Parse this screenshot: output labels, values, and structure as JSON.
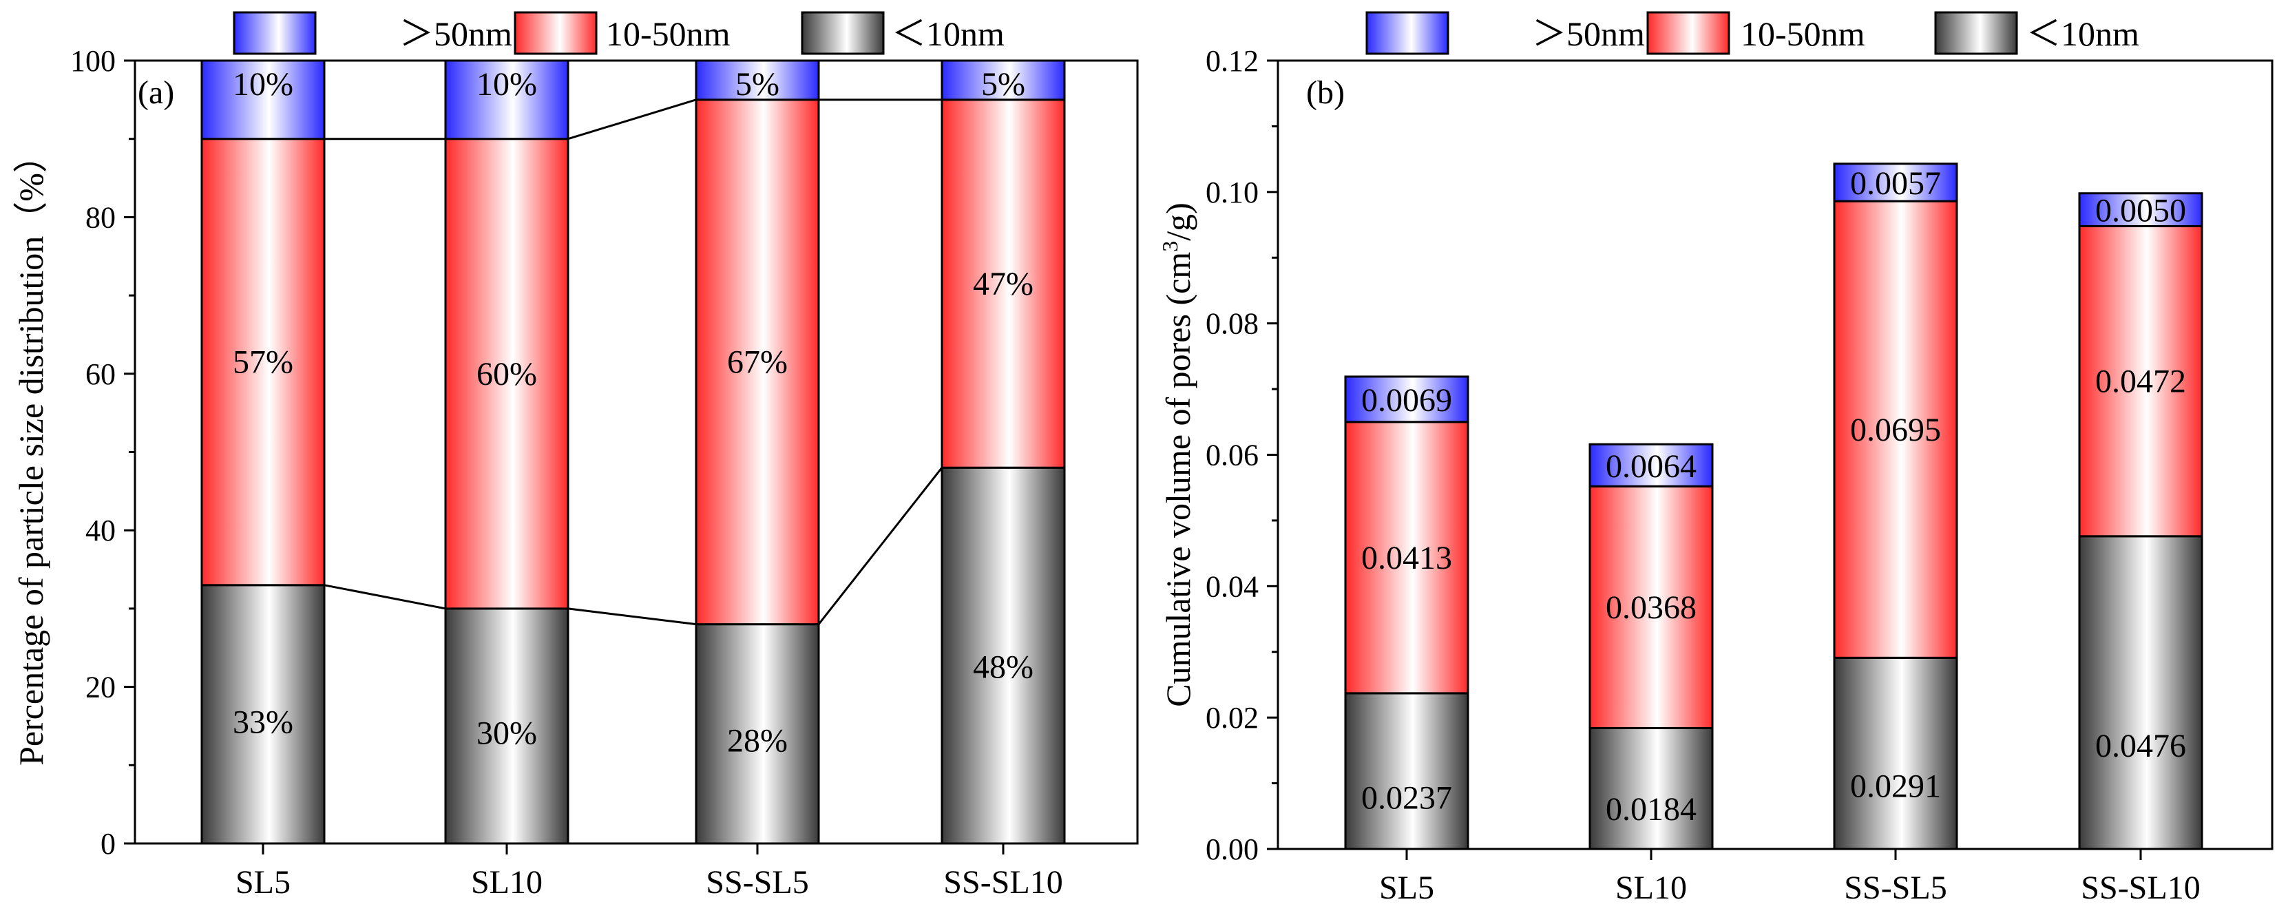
{
  "legend": [
    {
      "label": "＞50nm",
      "color": "#2a2aff"
    },
    {
      "label": "10-50nm",
      "color": "#ff2a2a"
    },
    {
      "label": "＜10nm",
      "color": "#3a3a3a"
    }
  ],
  "chart_data": [
    {
      "type": "bar",
      "stacked": true,
      "panel_label": "(a)",
      "categories": [
        "SL5",
        "SL10",
        "SS-SL5",
        "SS-SL10"
      ],
      "ylabel": "Percentage of particle size distribution（%）",
      "ylim": [
        0,
        100
      ],
      "yticks": [
        "0",
        "20",
        "40",
        "60",
        "80",
        "100"
      ],
      "series": [
        {
          "name": "＜10nm",
          "values": [
            33,
            30,
            28,
            48
          ],
          "labels": [
            "33%",
            "30%",
            "28%",
            "48%"
          ]
        },
        {
          "name": "10-50nm",
          "values": [
            57,
            60,
            67,
            47
          ],
          "labels": [
            "57%",
            "60%",
            "67%",
            "47%"
          ]
        },
        {
          "name": "＞50nm",
          "values": [
            10,
            10,
            5,
            5
          ],
          "labels": [
            "10%",
            "10%",
            "5%",
            "5%"
          ]
        }
      ],
      "connecting_lines": true
    },
    {
      "type": "bar",
      "stacked": true,
      "panel_label": "(b)",
      "categories": [
        "SL5",
        "SL10",
        "SS-SL5",
        "SS-SL10"
      ],
      "ylabel_main": "Cumulative volume of pores (cm",
      "ylabel_sup": "3",
      "ylabel_end": "/g)",
      "ylim": [
        0,
        0.12
      ],
      "yticks": [
        "0.00",
        "0.02",
        "0.04",
        "0.06",
        "0.08",
        "0.10",
        "0.12"
      ],
      "series": [
        {
          "name": "＜10nm",
          "values": [
            0.0237,
            0.0184,
            0.0291,
            0.0476
          ],
          "labels": [
            "0.0237",
            "0.0184",
            "0.0291",
            "0.0476"
          ]
        },
        {
          "name": "10-50nm",
          "values": [
            0.0413,
            0.0368,
            0.0695,
            0.0472
          ],
          "labels": [
            "0.0413",
            "0.0368",
            "0.0695",
            "0.0472"
          ]
        },
        {
          "name": "＞50nm",
          "values": [
            0.0069,
            0.0064,
            0.0057,
            0.005
          ],
          "labels": [
            "0.0069",
            "0.0064",
            "0.0057",
            "0.0050"
          ]
        }
      ],
      "connecting_lines": false
    }
  ]
}
